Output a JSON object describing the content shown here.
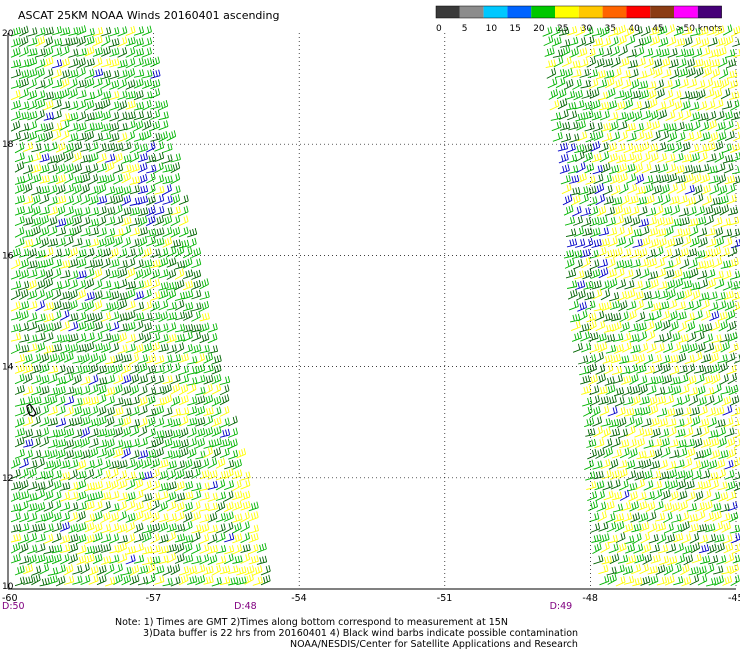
{
  "title": "ASCAT 25KM NOAA Winds 20160401  ascending",
  "colorbar": {
    "labels": [
      "0",
      "5",
      "10",
      "15",
      "20",
      "25",
      "30",
      "35",
      "40",
      "45",
      ">50 knots"
    ],
    "colors": [
      "#3a3a3a",
      "#8c8c8c",
      "#00c8ff",
      "#0064ff",
      "#00c800",
      "#ffff00",
      "#ffc800",
      "#ff6400",
      "#ff0000",
      "#8b3c14",
      "#ff00ff",
      "#460078"
    ]
  },
  "axes": {
    "lon_labels": [
      "-60",
      "-57",
      "-54",
      "-51",
      "-48",
      "-45"
    ],
    "lat_labels": [
      "20",
      "18",
      "16",
      "14",
      "12",
      "10"
    ],
    "lon_values": [
      -60,
      -57,
      -54,
      -51,
      -48,
      -45
    ],
    "lat_values": [
      20,
      18,
      16,
      14,
      12,
      10
    ],
    "lon_range": [
      -60,
      -45
    ],
    "lat_range": [
      10,
      20
    ]
  },
  "pass_times": [
    {
      "label": "D:50",
      "lon": -60
    },
    {
      "label": "D:48",
      "lon": -55.3
    },
    {
      "label": "D:49",
      "lon": -48.8
    }
  ],
  "swaths": [
    {
      "name": "west",
      "color_mix": {
        "green": 0.55,
        "darkgreen": 0.3,
        "yellow": 0.12,
        "blue": 0.03
      }
    },
    {
      "name": "east",
      "color_mix": {
        "green": 0.4,
        "darkgreen": 0.35,
        "yellow": 0.23,
        "blue": 0.02
      }
    }
  ],
  "notes": {
    "line1": "Note: 1) Times are GMT 2)Times along bottom correspond to measurement at 15N",
    "line2": "3)Data buffer is 22 hrs from 20160401  4) Black wind barbs indicate possible contamination",
    "credit": "NOAA/NESDIS/Center for Satellite Applications and Research"
  }
}
